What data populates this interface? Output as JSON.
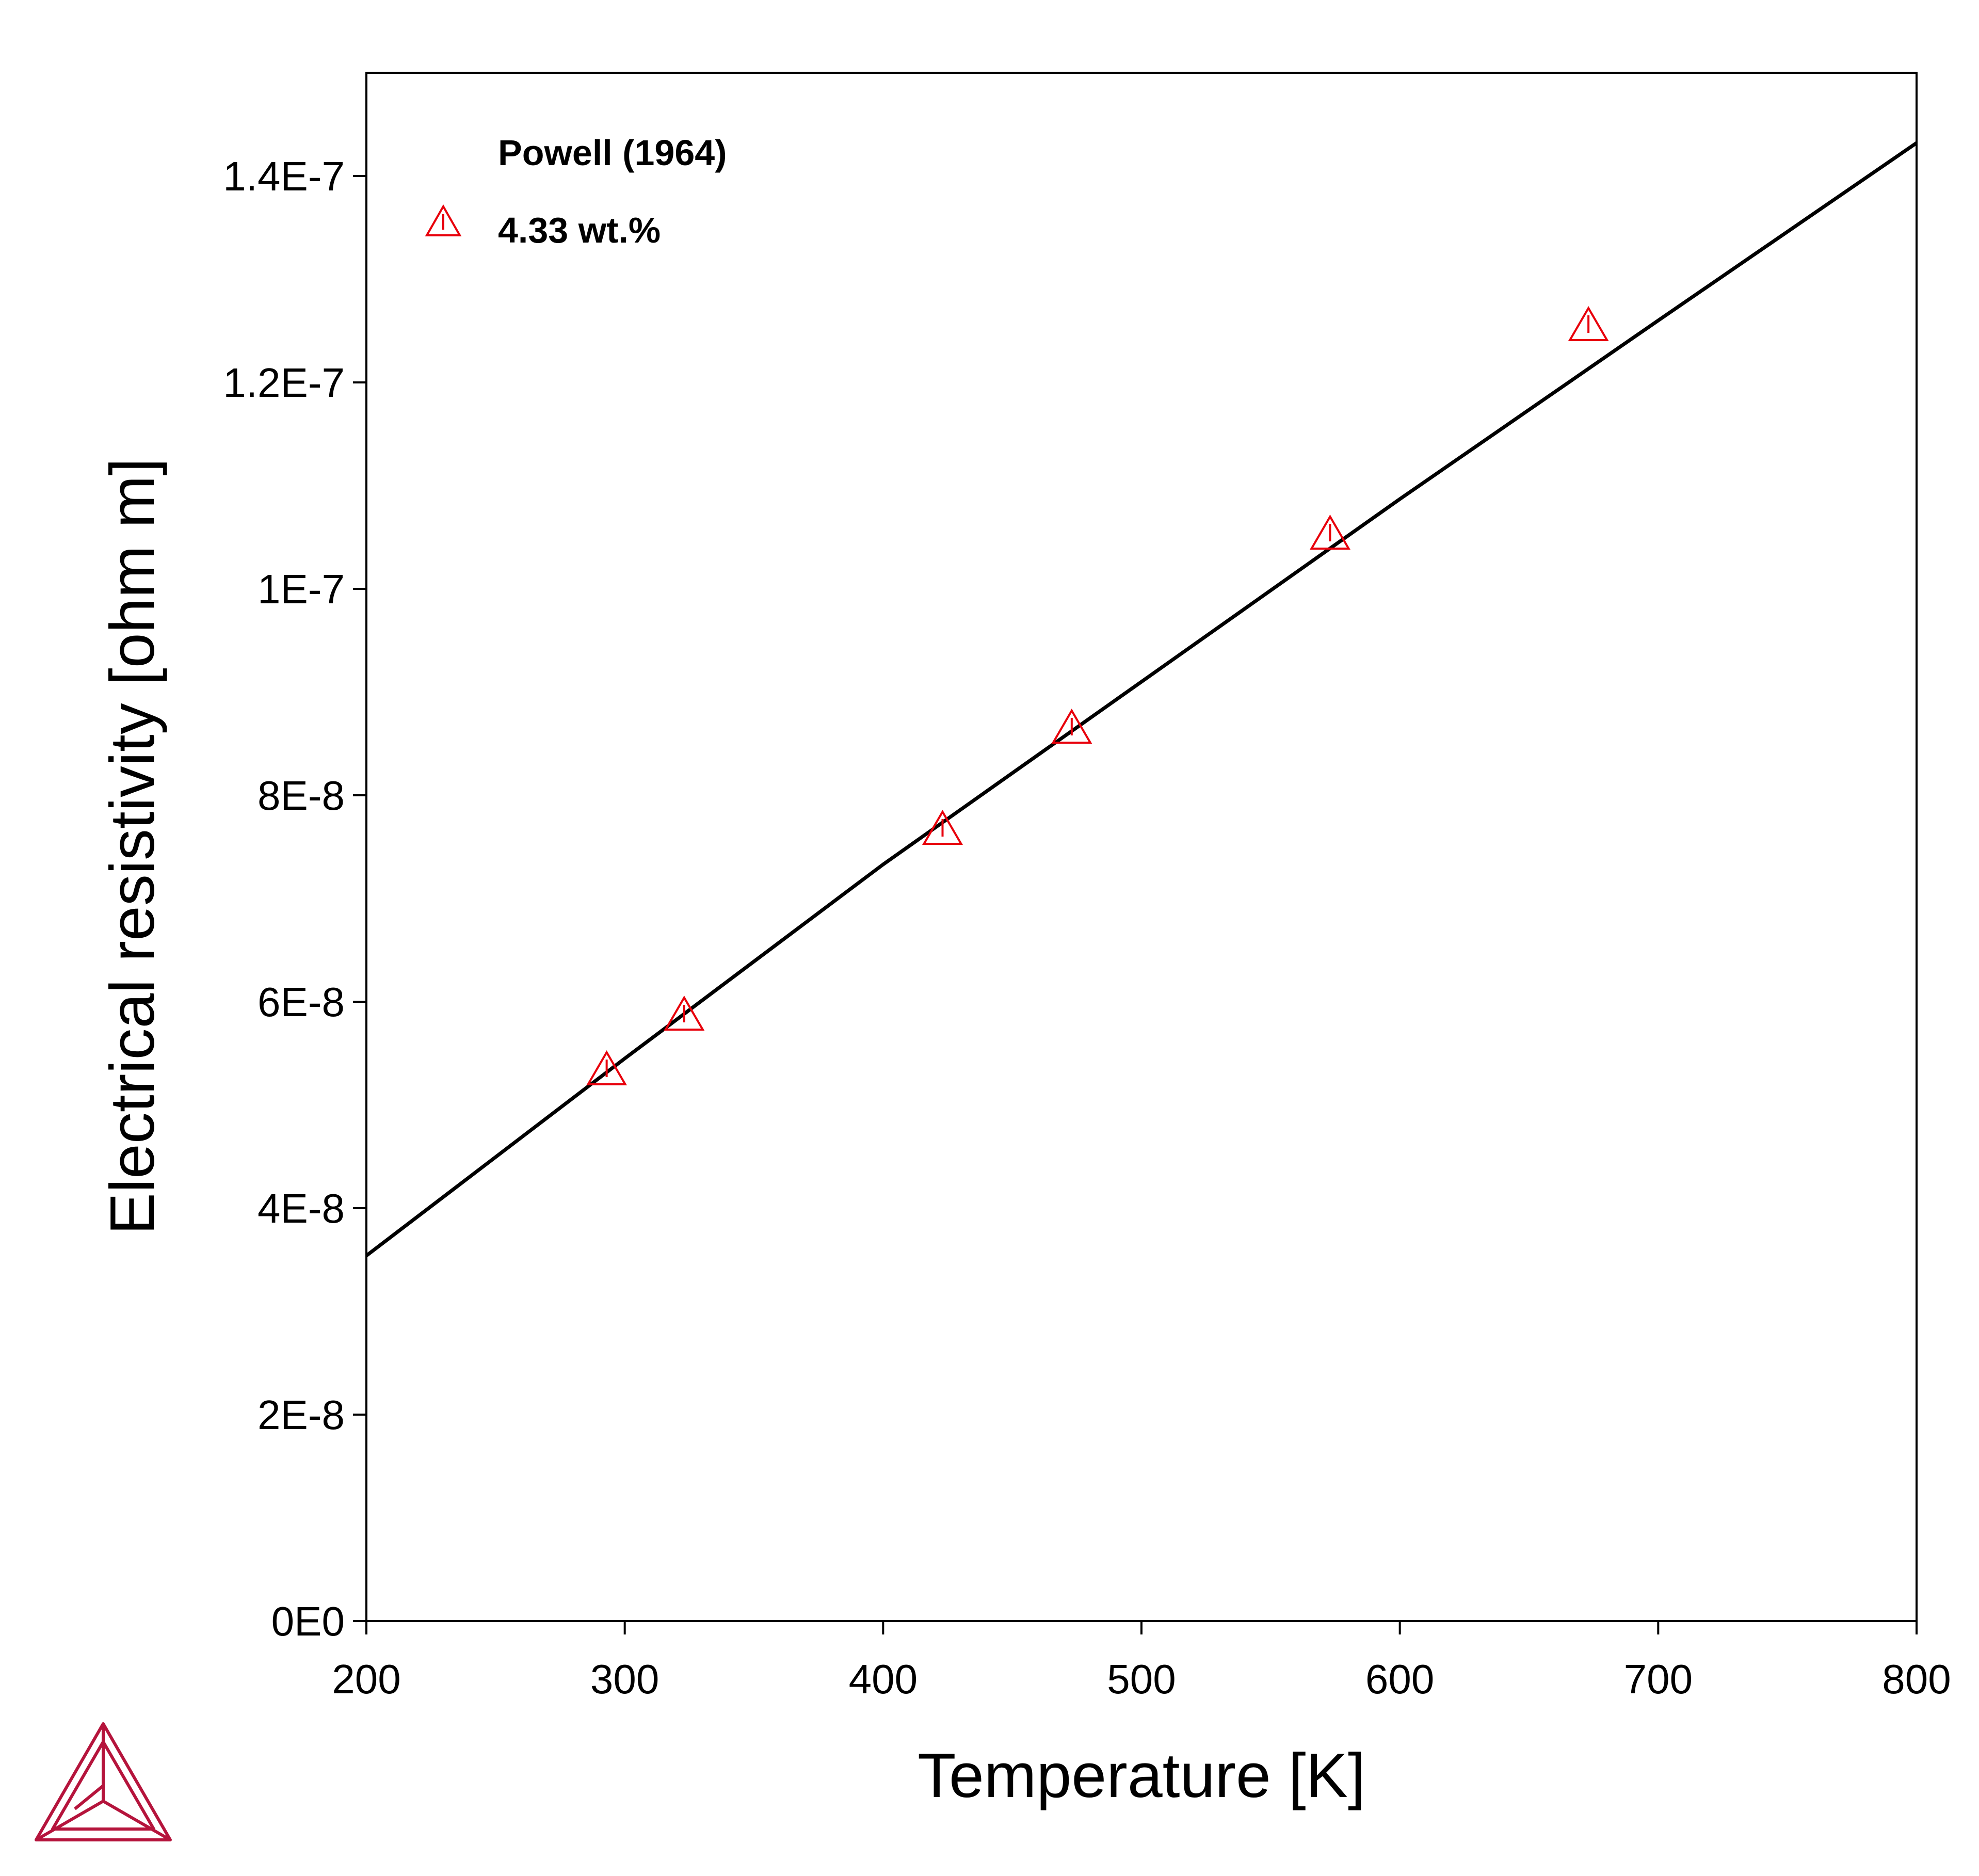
{
  "chart_data": {
    "type": "line",
    "title": "",
    "xlabel": "Temperature [K]",
    "ylabel": "Electrical resistivity [ohm m]",
    "xlim": [
      200,
      800
    ],
    "ylim": [
      0,
      1.5e-07
    ],
    "grid": false,
    "legend_position": "top-left",
    "x_ticks": [
      200,
      300,
      400,
      500,
      600,
      700,
      800
    ],
    "x_tick_labels": [
      "200",
      "300",
      "400",
      "500",
      "600",
      "700",
      "800"
    ],
    "y_ticks": [
      0,
      2e-08,
      4e-08,
      6e-08,
      8e-08,
      1e-07,
      1.2e-07,
      1.4e-07
    ],
    "y_tick_labels": [
      "0E0",
      "2E-8",
      "4E-8",
      "6E-8",
      "8E-8",
      "1E-7",
      "1.2E-7",
      "1.4E-7"
    ],
    "legend": {
      "heading": "Powell (1964)",
      "entries": [
        {
          "label": "4.33 wt.%",
          "marker": "triangle",
          "color": "#e8000b"
        }
      ]
    },
    "series": [
      {
        "kind": "line",
        "color": "#000000",
        "x": [
          200,
          300,
          400,
          500,
          600,
          700,
          800
        ],
        "y": [
          3.54e-08,
          5.45e-08,
          7.33e-08,
          9.1e-08,
          1.087e-07,
          1.26e-07,
          1.432e-07
        ]
      },
      {
        "name": "4.33 wt.%",
        "kind": "scatter",
        "marker": "triangle",
        "color": "#e8000b",
        "x": [
          293,
          323,
          423,
          473,
          573,
          673
        ],
        "y": [
          5.33e-08,
          5.86e-08,
          7.66e-08,
          8.64e-08,
          1.052e-07,
          1.254e-07
        ]
      }
    ]
  },
  "logo": {
    "name": "thermo-calc-logo-icon",
    "color": "#b5143c"
  }
}
